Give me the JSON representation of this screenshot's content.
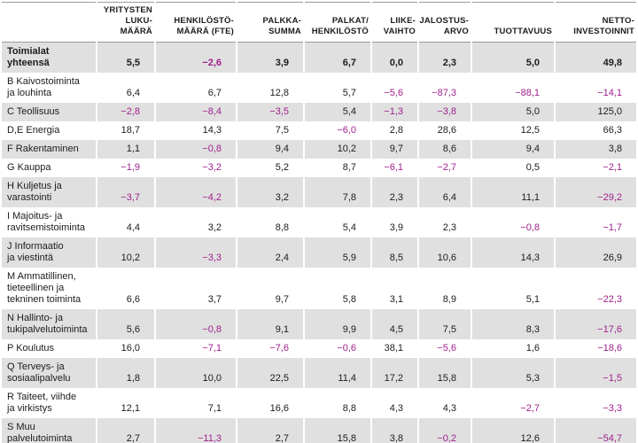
{
  "chart_data": {
    "type": "table",
    "title": "",
    "corner_label": "",
    "columns": [
      "YRITYSTEN\nLUKU-\nMÄÄRÄ",
      "HENKILÖSTÖ-\nMÄÄRÄ (FTE)",
      "PALKKA-\nSUMMA",
      "PALKAT/\nHENKILÖSTÖ",
      "LIIKE-\nVAIHTO",
      "JALOSTUS-\nARVO",
      "TUOTTAVUUS",
      "NETTO-\nINVESTOINNIT"
    ],
    "rows": [
      {
        "label": "Toimialat yhteensä",
        "bold": true,
        "values": [
          "5,5",
          "−2,6",
          "3,9",
          "6,7",
          "0,0",
          "2,3",
          "5,0",
          "49,8"
        ]
      },
      {
        "label": "B Kaivostoiminta\nja louhinta",
        "bold": false,
        "values": [
          "6,4",
          "6,7",
          "12,8",
          "5,7",
          "−5,6",
          "−87,3",
          "−88,1",
          "−14,1"
        ]
      },
      {
        "label": "C Teollisuus",
        "bold": false,
        "values": [
          "−2,8",
          "−8,4",
          "−3,5",
          "5,4",
          "−1,3",
          "−3,8",
          "5,0",
          "125,0"
        ]
      },
      {
        "label": "D,E Energia",
        "bold": false,
        "values": [
          "18,7",
          "14,3",
          "7,5",
          "−6,0",
          "2,8",
          "28,6",
          "12,5",
          "66,3"
        ]
      },
      {
        "label": "F Rakentaminen",
        "bold": false,
        "values": [
          "1,1",
          "−0,8",
          "9,4",
          "10,2",
          "9,7",
          "8,6",
          "9,4",
          "3,8"
        ]
      },
      {
        "label": "G Kauppa",
        "bold": false,
        "values": [
          "−1,9",
          "−3,2",
          "5,2",
          "8,7",
          "−6,1",
          "−2,7",
          "0,5",
          "−2,1"
        ]
      },
      {
        "label": "H Kuljetus ja\nvarastointi",
        "bold": false,
        "values": [
          "−3,7",
          "−4,2",
          "3,2",
          "7,8",
          "2,3",
          "6,4",
          "11,1",
          "−29,2"
        ]
      },
      {
        "label": "I Majoitus- ja\nravitsemistoiminta",
        "bold": false,
        "values": [
          "4,4",
          "3,2",
          "8,8",
          "5,4",
          "3,9",
          "2,3",
          "−0,8",
          "−1,7"
        ]
      },
      {
        "label": "J Informaatio\nja viestintä",
        "bold": false,
        "values": [
          "10,2",
          "−3,3",
          "2,4",
          "5,9",
          "8,5",
          "10,6",
          "14,3",
          "26,9"
        ]
      },
      {
        "label": "M Ammatillinen,\ntieteellinen ja\ntekninen toiminta",
        "bold": false,
        "values": [
          "6,6",
          "3,7",
          "9,7",
          "5,8",
          "3,1",
          "8,9",
          "5,1",
          "−22,3"
        ]
      },
      {
        "label": "N Hallinto- ja\ntukipalvelutoiminta",
        "bold": false,
        "values": [
          "5,6",
          "−0,8",
          "9,1",
          "9,9",
          "4,5",
          "7,5",
          "8,3",
          "−17,6"
        ]
      },
      {
        "label": "P Koulutus",
        "bold": false,
        "values": [
          "16,0",
          "−7,1",
          "−7,6",
          "−0,6",
          "38,1",
          "−5,6",
          "1,6",
          "−18,6"
        ]
      },
      {
        "label": "Q Terveys- ja\nsosiaalipalvelu",
        "bold": false,
        "values": [
          "1,8",
          "10,0",
          "22,5",
          "11,4",
          "17,2",
          "15,8",
          "5,3",
          "−1,5"
        ]
      },
      {
        "label": "R Taiteet, viihde\nja virkistys",
        "bold": false,
        "values": [
          "12,1",
          "7,1",
          "16,6",
          "8,8",
          "4,3",
          "4,3",
          "−2,7",
          "−3,3"
        ]
      },
      {
        "label": "S Muu\npalvelutoiminta",
        "bold": false,
        "values": [
          "2,7",
          "−11,3",
          "2,7",
          "15,8",
          "3,8",
          "−0,2",
          "12,6",
          "−54,7"
        ]
      }
    ],
    "colors": {
      "negative_value": "#a0208c",
      "row_stripe": "#e0e0e0",
      "rule_line": "#9b9b9b",
      "text": "#1c1c1c"
    },
    "layout_hints": {
      "striped_rows": "alternating starting gray on total row",
      "negative_numbers": "magenta",
      "decimal_separator": ","
    }
  }
}
